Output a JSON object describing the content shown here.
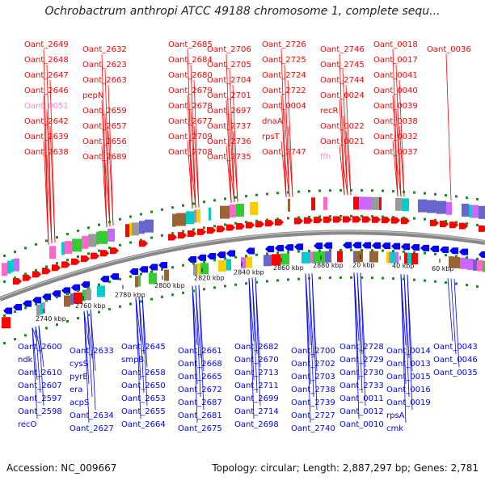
{
  "title": "Ochrobactrum anthropi ATCC 49188 chromosome 1, complete sequ...",
  "footer": {
    "accession": "Accession: NC_009667",
    "summary": "Topology: circular; Length: 2,887,297 bp; Genes: 2,781"
  },
  "colors": {
    "forward": "#ff0000",
    "reverse": "#0000ff",
    "highlight": "#ff88cc",
    "backbone": "#888888",
    "dots": "#1a8a1a"
  },
  "ticks": [
    "2740 kbp",
    "2760 kbp",
    "2780 kbp",
    "2800 kbp",
    "2820 kbp",
    "2840 kbp",
    "2860 kbp",
    "2880 kbp",
    "20 kbp",
    "40 kbp",
    "60 kbp"
  ],
  "top_labels": [
    "Oant_2649",
    "Oant_2648",
    "Oant_2647",
    "Oant_2646",
    "Oant_0051",
    "Oant_2642",
    "Oant_2639",
    "Oant_2638",
    "Oant_2632",
    "Oant_2623",
    "Oant_2663",
    "pepN",
    "Oant_2659",
    "Oant_2657",
    "Oant_2656",
    "Oant_2689",
    "Oant_2685",
    "Oant_2684",
    "Oant_2680",
    "Oant_2679",
    "Oant_2678",
    "Oant_2677",
    "Oant_2709",
    "Oant_2708",
    "Oant_2706",
    "Oant_2705",
    "Oant_2704",
    "Oant_2701",
    "Oant_2697",
    "Oant_2737",
    "Oant_2736",
    "Oant_2735",
    "Oant_2726",
    "Oant_2725",
    "Oant_2724",
    "Oant_2722",
    "Oant_0004",
    "dnaA",
    "rpsT",
    "Oant_2747",
    "Oant_2746",
    "Oant_2745",
    "Oant_2744",
    "Oant_0024",
    "recR",
    "Oant_0022",
    "Oant_0021",
    "ffh",
    "Oant_0018",
    "Oant_0017",
    "Oant_0041",
    "Oant_0040",
    "Oant_0039",
    "Oant_0038",
    "Oant_0032",
    "Oant_0037",
    "Oant_0036"
  ],
  "bottom_labels": [
    "Oant_2600",
    "ndk",
    "Oant_2610",
    "Oant_2607",
    "Oant_2597",
    "Oant_2598",
    "recO",
    "Oant_2633",
    "cysS",
    "pyrE",
    "era",
    "acpS",
    "Oant_2634",
    "Oant_2627",
    "Oant_2645",
    "smpB",
    "Oant_2658",
    "Oant_2650",
    "Oant_2653",
    "Oant_2655",
    "Oant_2664",
    "Oant_2661",
    "Oant_2668",
    "Oant_2665",
    "Oant_2672",
    "Oant_2687",
    "Oant_2681",
    "Oant_2675",
    "Oant_2682",
    "Oant_2670",
    "Oant_2713",
    "Oant_2711",
    "Oant_2699",
    "Oant_2714",
    "Oant_2698",
    "Oant_2700",
    "Oant_2702",
    "Oant_2703",
    "Oant_2738",
    "Oant_2739",
    "Oant_2727",
    "Oant_2740",
    "Oant_2728",
    "Oant_2729",
    "Oant_2730",
    "Oant_2733",
    "Oant_0011",
    "Oant_0012",
    "Oant_0010",
    "Oant_0014",
    "Oant_0013",
    "Oant_0015",
    "Oant_0016",
    "Oant_0019",
    "rpsA",
    "cmk",
    "Oant_0043",
    "Oant_0046",
    "Oant_0035"
  ]
}
